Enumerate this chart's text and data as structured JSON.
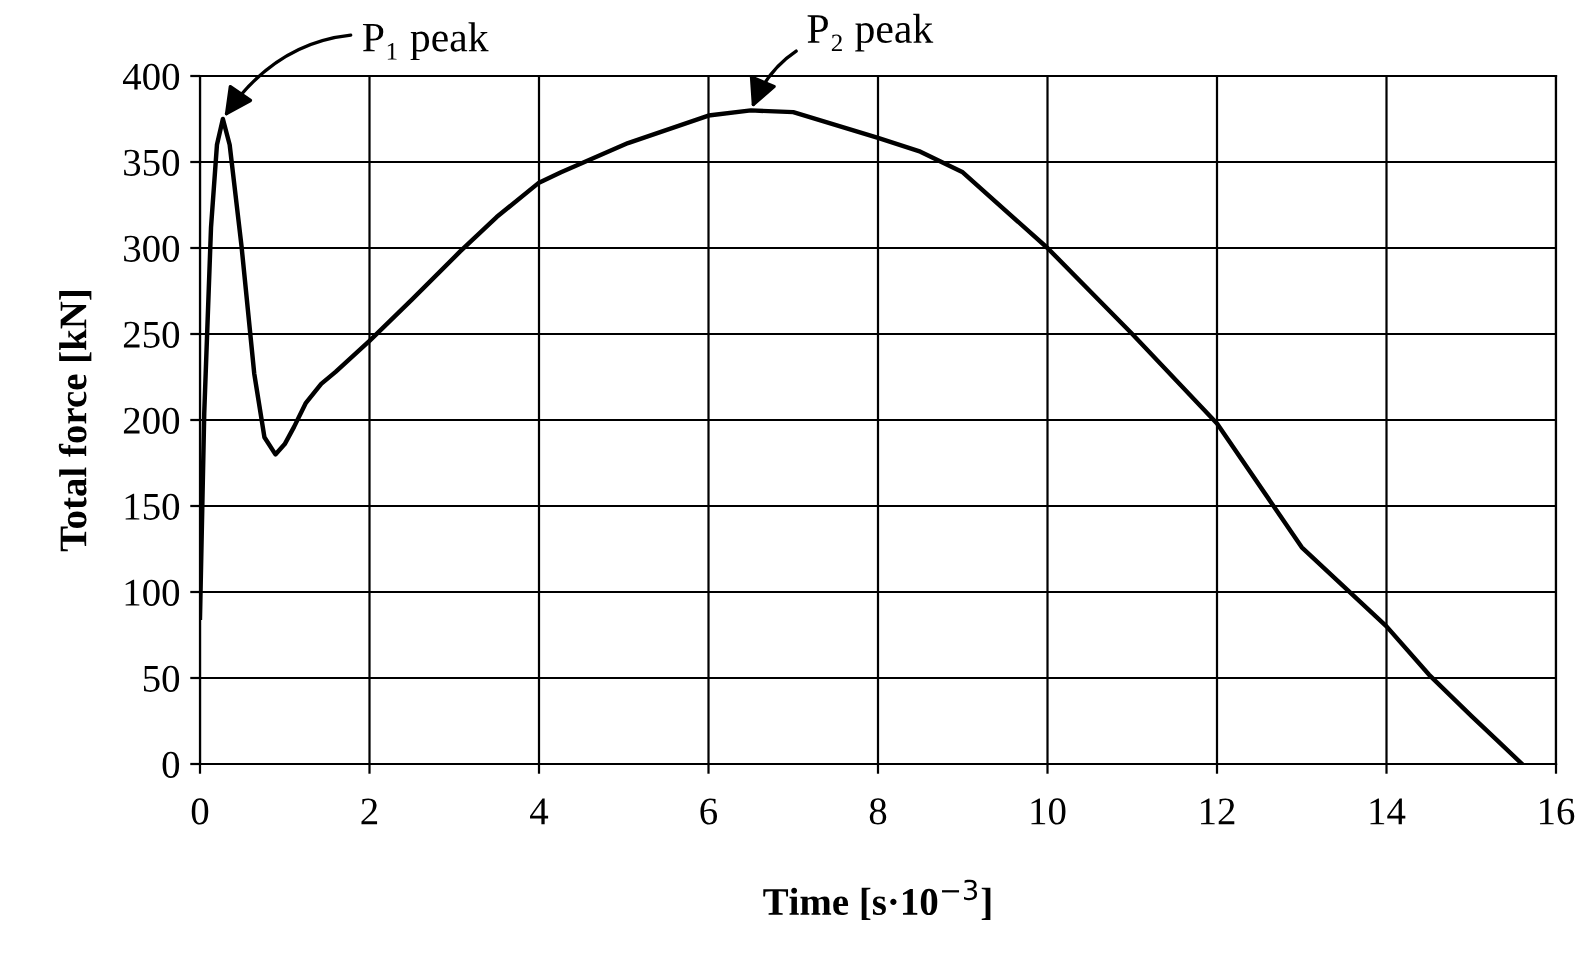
{
  "chart_data": {
    "type": "line",
    "xlabel": "Time [s·10$^{−3}$]",
    "ylabel": "Total force [kN]",
    "x": [
      0,
      0.05,
      0.13,
      0.2,
      0.27,
      0.35,
      0.49,
      0.64,
      0.76,
      0.89,
      1.0,
      1.11,
      1.25,
      1.43,
      1.6,
      2,
      2.5,
      3.07,
      3.5,
      4,
      4.26,
      5.05,
      6,
      6.5,
      7,
      8,
      8.5,
      9,
      10,
      11,
      12,
      13,
      14,
      14.5,
      15,
      15.3,
      15.6
    ],
    "series": [
      {
        "color": "#000000",
        "values": [
          85,
          204,
          312,
          360,
          375,
          360,
          301,
          227,
          190,
          180,
          186,
          196,
          210,
          221,
          228,
          246,
          270,
          298,
          318,
          338,
          344,
          361,
          377,
          380,
          379,
          364,
          356,
          344,
          300,
          250,
          198,
          126,
          80,
          52,
          28,
          14,
          0
        ]
      }
    ],
    "xlim": [
      0,
      16
    ],
    "xticks": [
      0,
      2,
      4,
      6,
      8,
      10,
      12,
      14,
      16
    ],
    "ylim": [
      0,
      400
    ],
    "yticks": [
      0,
      50,
      100,
      150,
      200,
      250,
      300,
      350,
      400
    ],
    "grid": true,
    "marker": "none",
    "line_style": "solid",
    "annotations": [
      {
        "text": "P₁ peak",
        "x": 0.27,
        "y": 375
      },
      {
        "text": "P₂ peak",
        "x": 6.5,
        "y": 380
      }
    ]
  }
}
